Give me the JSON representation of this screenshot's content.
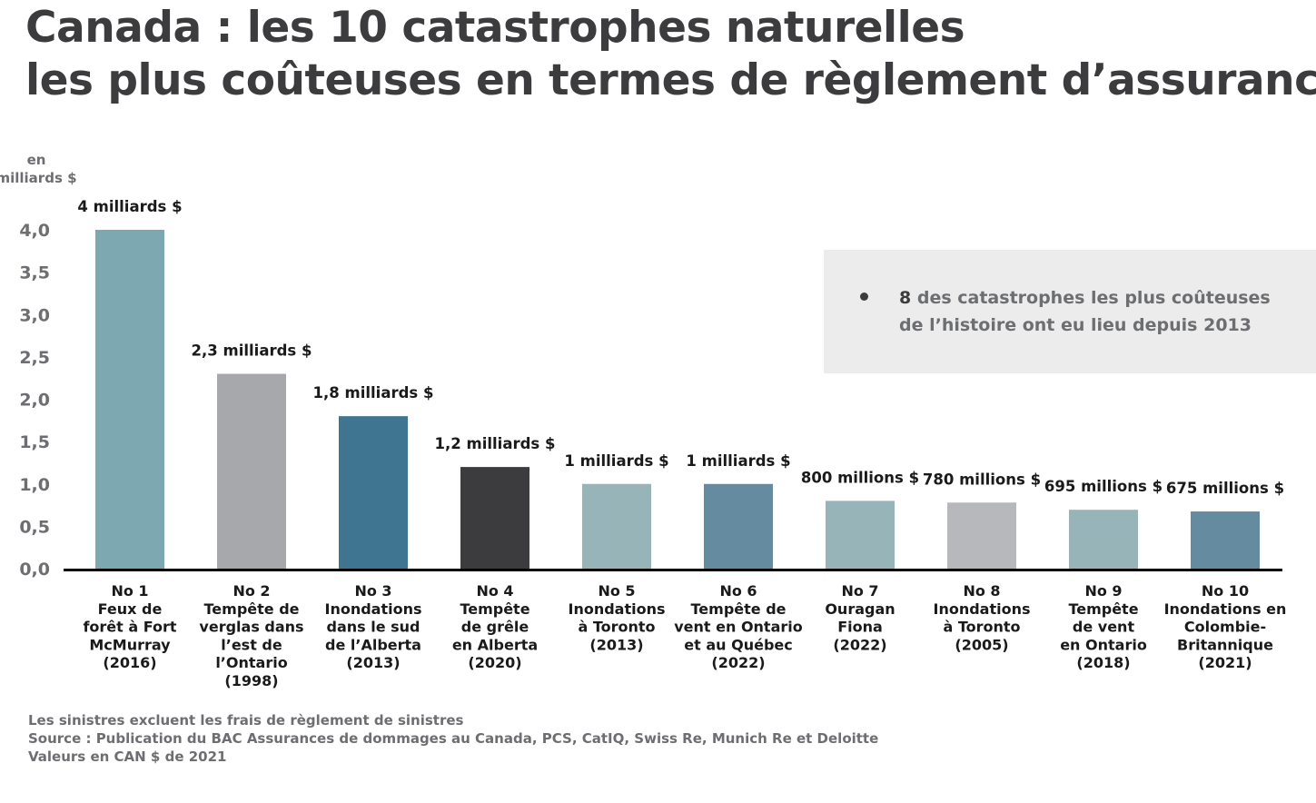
{
  "title": {
    "line1": "Canada : les 10 catastrophes naturelles",
    "line2": "les plus coûteuses en termes de règlement d’assurance"
  },
  "colors": {
    "bars": [
      "#7ea8b1",
      "#a7a8ac",
      "#3f7590",
      "#3c3c3e",
      "#97b5b9",
      "#658ba1",
      "#97b5b9",
      "#b7b8bb",
      "#97b5b9",
      "#658ba1"
    ],
    "axis": "#000000",
    "note_background": "#ececec"
  },
  "note": {
    "number": "8",
    "text": "des catastrophes les plus coûteuses de l’histoire ont eu lieu depuis 2013"
  },
  "footer": {
    "line1": "Les sinistres excluent les frais de règlement de sinistres",
    "line2": "Source : Publication du BAC Assurances de dommages au Canada, PCS, CatIQ, Swiss Re, Munich Re et Deloitte",
    "line3": "Valeurs en CAN $ de 2021"
  },
  "chart_data": {
    "type": "bar",
    "ylabel": [
      "en",
      "milliards $"
    ],
    "ylim": [
      0,
      4.0
    ],
    "yticks": [
      0,
      0.5,
      1.0,
      1.5,
      2.0,
      2.5,
      3.0,
      3.5,
      4.0
    ],
    "ytick_labels": [
      "0,0",
      "0,5",
      "1,0",
      "1,5",
      "2,0",
      "2,5",
      "3,0",
      "3,5",
      "4,0"
    ],
    "grid": false,
    "categories": [
      [
        "No 1",
        "Feux de",
        "forêt à Fort",
        "McMurray",
        "(2016)"
      ],
      [
        "No 2",
        "Tempête de",
        "verglas dans",
        "l’est de",
        "l’Ontario",
        "(1998)"
      ],
      [
        "No 3",
        "Inondations",
        "dans le sud",
        "de l’Alberta",
        "(2013)"
      ],
      [
        "No 4",
        "Tempête",
        "de grêle",
        "en Alberta",
        "(2020)"
      ],
      [
        "No 5",
        "Inondations",
        "à Toronto",
        "(2013)"
      ],
      [
        "No 6",
        "Tempête de",
        "vent en Ontario",
        "et au Québec",
        "(2022)"
      ],
      [
        "No 7",
        "Ouragan",
        "Fiona",
        "(2022)"
      ],
      [
        "No 8",
        "Inondations",
        "à Toronto",
        "(2005)"
      ],
      [
        "No 9",
        "Tempête",
        "de vent",
        "en Ontario",
        "(2018)"
      ],
      [
        "No 10",
        "Inondations en",
        "Colombie-",
        "Britannique",
        "(2021)"
      ]
    ],
    "values": [
      4.0,
      2.3,
      1.8,
      1.2,
      1.0,
      1.0,
      0.8,
      0.78,
      0.695,
      0.675
    ],
    "value_labels": [
      "4 milliards $",
      "2,3 milliards $",
      "1,8 milliards $",
      "1,2 milliards $",
      "1 milliards $",
      "1 milliards $",
      "800 millions $",
      "780 millions $",
      "695 millions $",
      "675 millions $"
    ]
  }
}
